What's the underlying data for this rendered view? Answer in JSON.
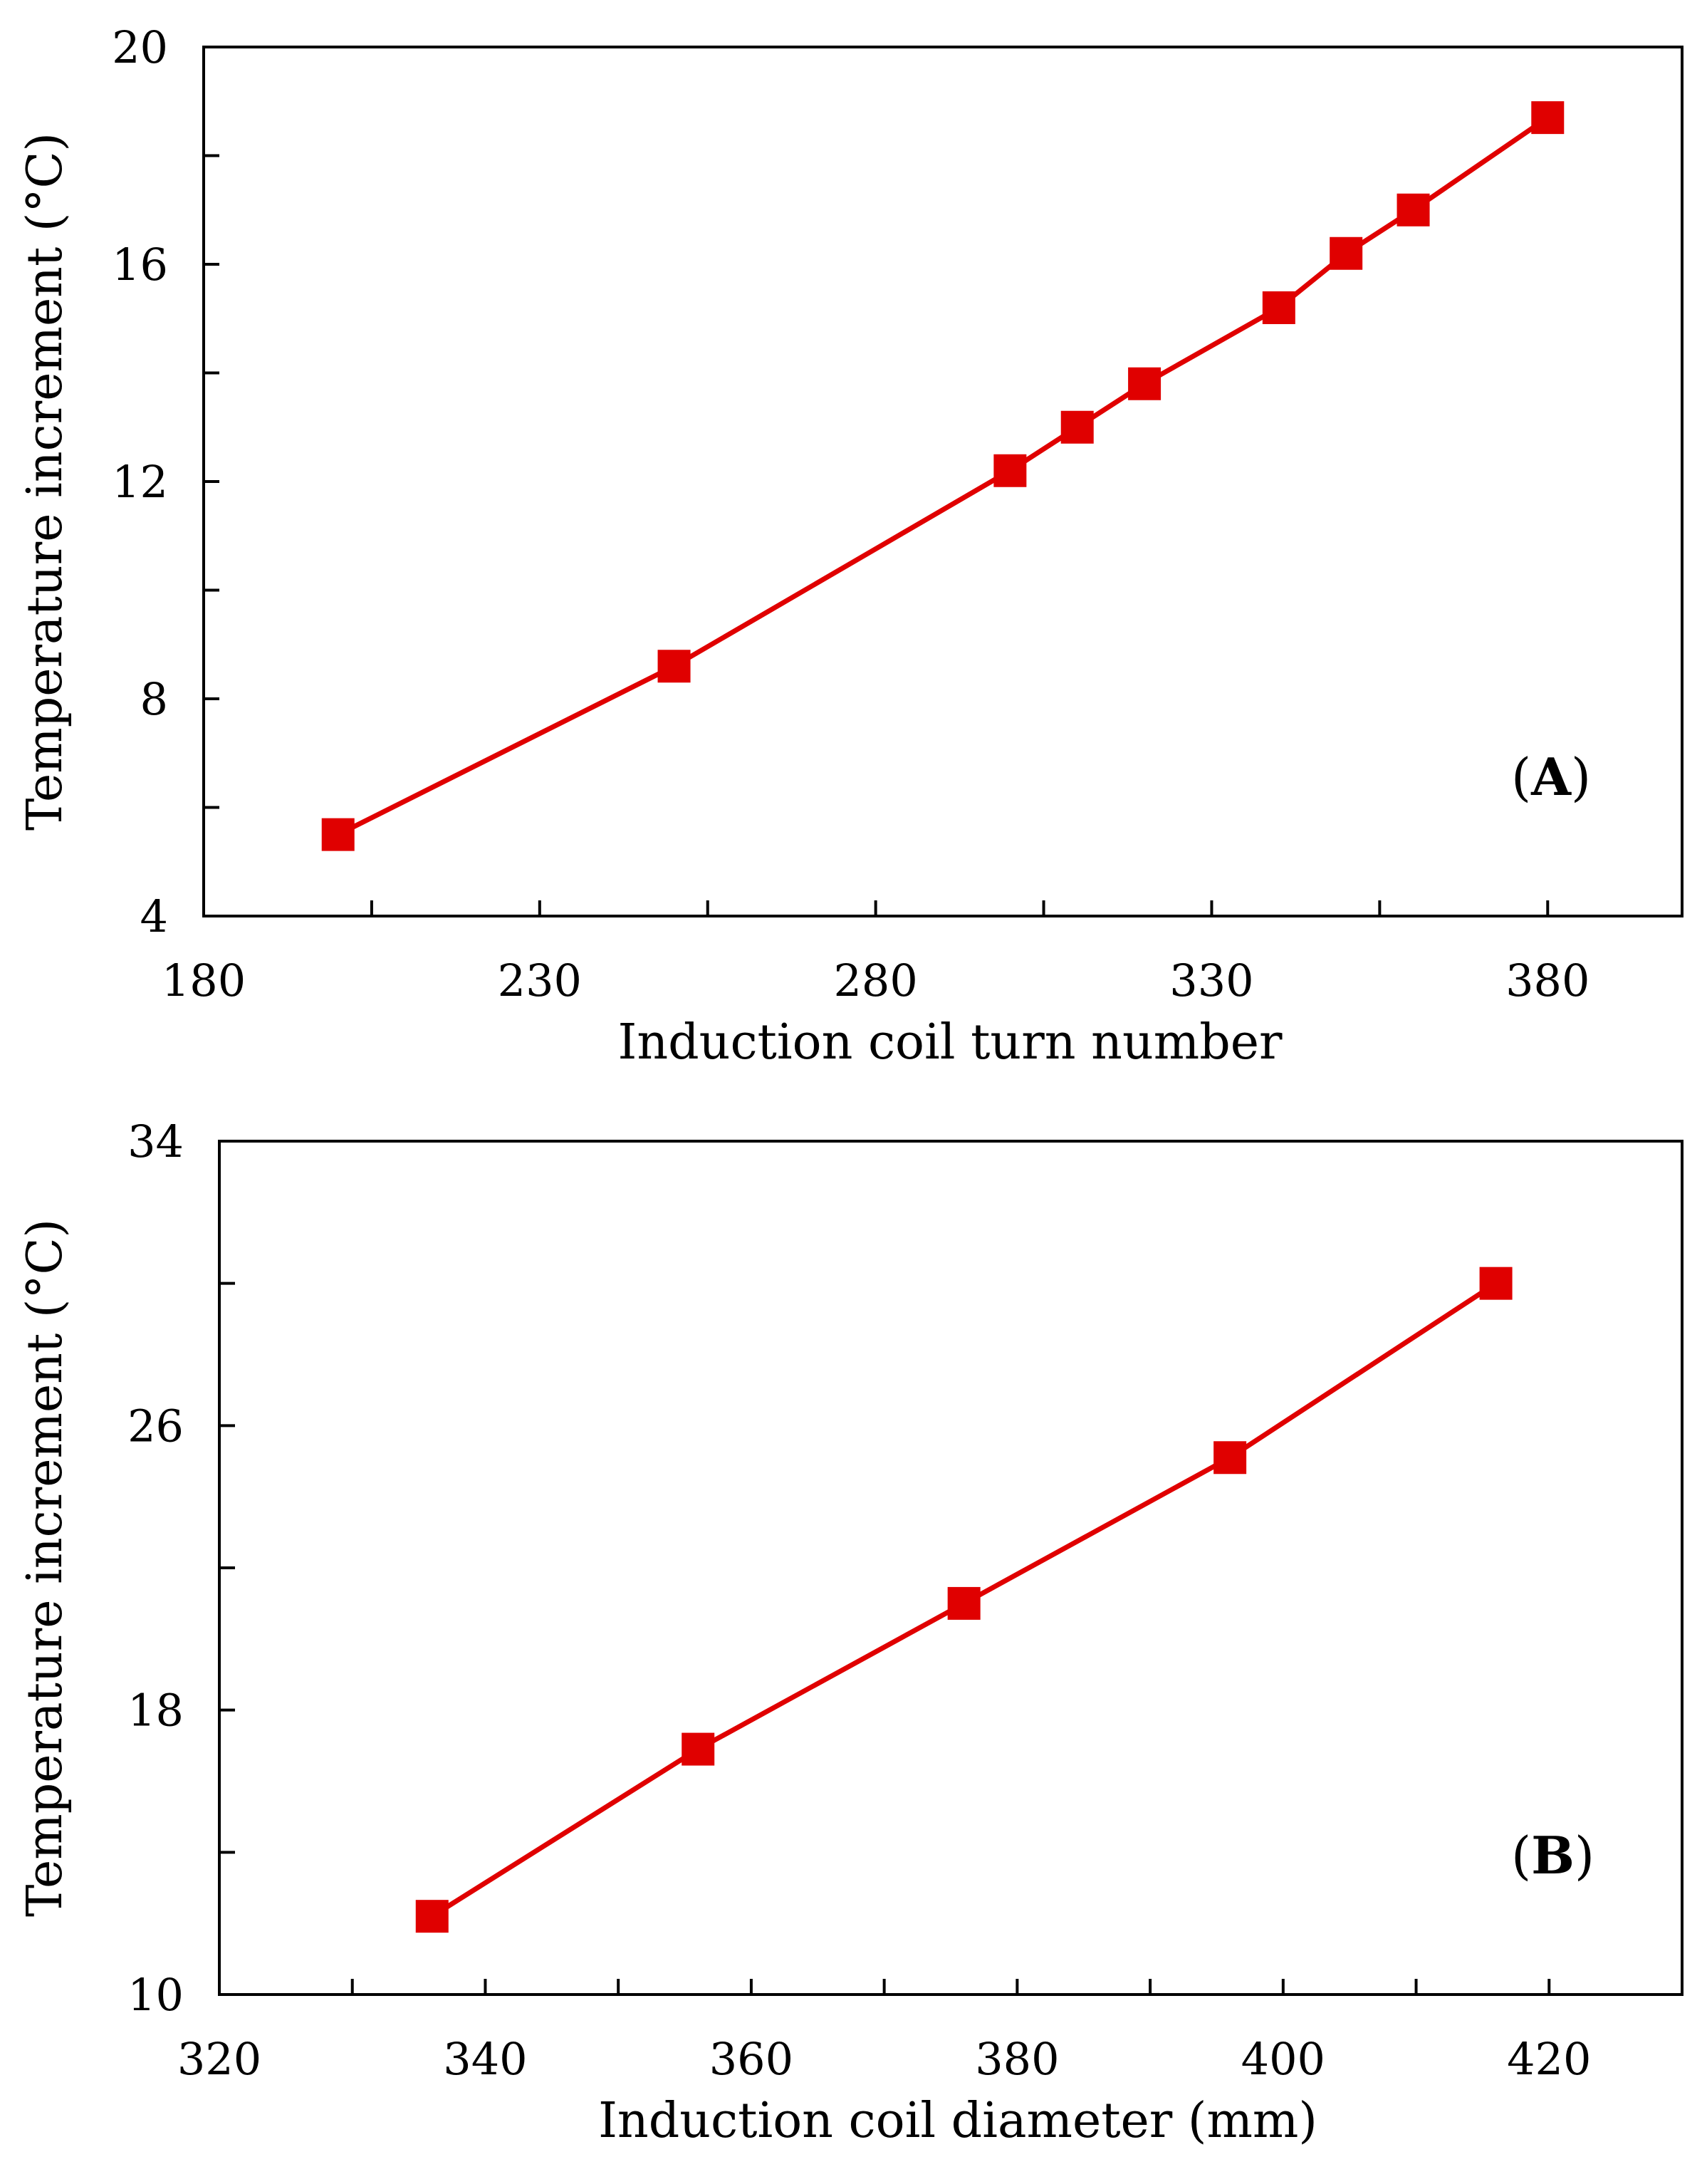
{
  "colors": {
    "series": "#e00000",
    "axis": "#000000",
    "background": "#ffffff"
  },
  "chart_data": [
    {
      "type": "line",
      "panel": "A",
      "panel_label": {
        "open": "(",
        "letter": "A",
        "close": ")"
      },
      "title": "",
      "xlabel": "Induction coil turn number",
      "ylabel": "Temperature increment (°C)",
      "xlim": [
        180,
        400
      ],
      "ylim": [
        4,
        20
      ],
      "xticks": [
        180,
        230,
        280,
        330,
        380
      ],
      "xticks_minor": [
        205,
        255,
        305,
        355
      ],
      "yticks": [
        4,
        8,
        12,
        16,
        20
      ],
      "yticks_minor": [
        6,
        10,
        14,
        18
      ],
      "marker": "square",
      "grid": false,
      "legend": "none",
      "series": [
        {
          "name": "Temperature increment",
          "x": [
            200,
            250,
            300,
            310,
            320,
            340,
            350,
            360,
            380
          ],
          "y": [
            5.5,
            8.6,
            12.2,
            13.0,
            13.8,
            15.2,
            16.2,
            17.0,
            18.7
          ]
        }
      ]
    },
    {
      "type": "line",
      "panel": "B",
      "panel_label": {
        "open": "(",
        "letter": "B",
        "close": ")"
      },
      "title": "",
      "xlabel": "Induction coil diameter (mm)",
      "ylabel": "Temperature increment (°C)",
      "xlim": [
        320,
        430
      ],
      "ylim": [
        10,
        34
      ],
      "xticks": [
        320,
        340,
        360,
        380,
        400,
        420
      ],
      "xticks_minor": [
        330,
        350,
        370,
        390,
        410
      ],
      "yticks": [
        10,
        18,
        26,
        34
      ],
      "yticks_minor": [
        14,
        22,
        30
      ],
      "marker": "square",
      "grid": false,
      "legend": "none",
      "series": [
        {
          "name": "Temperature increment",
          "x": [
            336,
            356,
            376,
            396,
            416
          ],
          "y": [
            12.2,
            16.9,
            21.0,
            25.1,
            30.0
          ]
        }
      ]
    }
  ]
}
